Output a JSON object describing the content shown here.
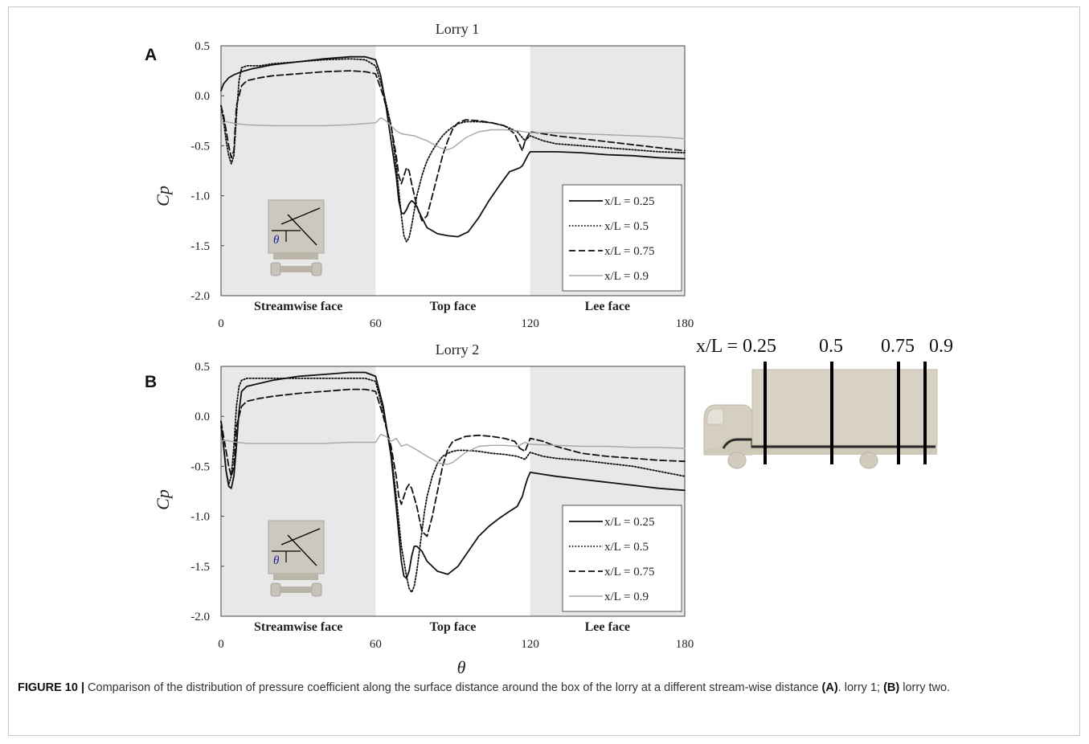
{
  "figure": {
    "caption_label": "FIGURE 10 |",
    "caption_text_1": " Comparison of the distribution of pressure coefficient along the surface distance around the box of the lorry at a different stream-wise distance ",
    "caption_bold_a": "(A)",
    "caption_text_2": ". lorry 1; ",
    "caption_bold_b": "(B)",
    "caption_text_3": " lorry two."
  },
  "schematic": {
    "label_prefix": "x/L = 0.25",
    "labels": [
      "0.5",
      "0.75",
      "0.9"
    ],
    "body_color": "#d8d2c4"
  },
  "chart_data": [
    {
      "type": "line",
      "panel_label": "A",
      "title": "Lorry 1",
      "xlabel": "",
      "ylabel": "Cp",
      "xlim": [
        0,
        180
      ],
      "ylim": [
        -2.0,
        0.5
      ],
      "xticks": [
        "0",
        "60",
        "120",
        "180"
      ],
      "yticks": [
        "0.5",
        "0.0",
        "-0.5",
        "-1.0",
        "-1.5",
        "-2.0"
      ],
      "regions": [
        {
          "label": "Streamwise face",
          "from": 0,
          "to": 60,
          "shaded": true
        },
        {
          "label": "Top face",
          "from": 60,
          "to": 120,
          "shaded": false
        },
        {
          "label": "Lee face",
          "from": 120,
          "to": 180,
          "shaded": true
        }
      ],
      "legend_position": "bottom-right",
      "inset_angle_label": "θ",
      "series": [
        {
          "name": "x/L = 0.25",
          "style": "solid",
          "color": "#111111",
          "x": [
            0,
            1,
            3,
            5,
            8,
            12,
            20,
            30,
            40,
            50,
            56,
            60,
            62,
            64,
            66,
            68,
            69,
            70,
            71,
            72,
            73,
            74,
            75,
            76,
            77,
            78,
            80,
            84,
            88,
            92,
            96,
            100,
            104,
            108,
            112,
            114,
            116,
            117,
            118,
            119,
            120,
            125,
            130,
            140,
            150,
            160,
            170,
            180
          ],
          "y": [
            0.05,
            0.12,
            0.18,
            0.21,
            0.24,
            0.27,
            0.31,
            0.34,
            0.37,
            0.39,
            0.39,
            0.36,
            0.2,
            -0.1,
            -0.45,
            -0.8,
            -1.05,
            -1.17,
            -1.18,
            -1.14,
            -1.08,
            -1.05,
            -1.07,
            -1.11,
            -1.17,
            -1.22,
            -1.32,
            -1.38,
            -1.4,
            -1.41,
            -1.36,
            -1.22,
            -1.05,
            -0.9,
            -0.76,
            -0.74,
            -0.72,
            -0.7,
            -0.65,
            -0.6,
            -0.56,
            -0.56,
            -0.56,
            -0.57,
            -0.59,
            -0.6,
            -0.62,
            -0.63
          ]
        },
        {
          "name": "x/L = 0.5",
          "style": "dotted",
          "color": "#111111",
          "x": [
            0,
            1,
            2,
            3,
            4,
            5,
            6,
            7,
            8,
            10,
            15,
            20,
            30,
            40,
            50,
            56,
            60,
            63,
            66,
            68,
            70,
            71,
            72,
            73,
            74,
            75,
            76,
            77,
            78,
            79,
            80,
            82,
            84,
            86,
            88,
            90,
            92,
            95,
            100,
            105,
            110,
            115,
            118,
            120,
            125,
            130,
            140,
            150,
            160,
            170,
            180
          ],
          "y": [
            -0.1,
            -0.25,
            -0.45,
            -0.6,
            -0.68,
            -0.6,
            -0.2,
            0.15,
            0.28,
            0.3,
            0.3,
            0.32,
            0.34,
            0.36,
            0.37,
            0.36,
            0.3,
            0.05,
            -0.3,
            -0.7,
            -1.2,
            -1.4,
            -1.46,
            -1.42,
            -1.3,
            -1.15,
            -1.0,
            -0.9,
            -0.8,
            -0.72,
            -0.65,
            -0.55,
            -0.47,
            -0.4,
            -0.35,
            -0.31,
            -0.28,
            -0.26,
            -0.26,
            -0.27,
            -0.3,
            -0.36,
            -0.45,
            -0.4,
            -0.45,
            -0.48,
            -0.5,
            -0.52,
            -0.54,
            -0.56,
            -0.57
          ]
        },
        {
          "name": "x/L = 0.75",
          "style": "dashed",
          "color": "#111111",
          "x": [
            0,
            1,
            2,
            3,
            4,
            5,
            6,
            8,
            10,
            15,
            20,
            30,
            40,
            50,
            56,
            60,
            63,
            66,
            68,
            69,
            70,
            71,
            72,
            73,
            74,
            76,
            78,
            80,
            82,
            84,
            86,
            88,
            90,
            92,
            95,
            100,
            105,
            110,
            114,
            117,
            118,
            120,
            125,
            130,
            140,
            150,
            160,
            170,
            180
          ],
          "y": [
            -0.1,
            -0.2,
            -0.35,
            -0.5,
            -0.62,
            -0.55,
            -0.1,
            0.1,
            0.15,
            0.18,
            0.2,
            0.22,
            0.24,
            0.25,
            0.24,
            0.22,
            0.0,
            -0.3,
            -0.6,
            -0.8,
            -0.88,
            -0.8,
            -0.72,
            -0.75,
            -0.88,
            -1.1,
            -1.25,
            -1.2,
            -1.0,
            -0.8,
            -0.6,
            -0.45,
            -0.33,
            -0.27,
            -0.24,
            -0.25,
            -0.27,
            -0.3,
            -0.38,
            -0.55,
            -0.45,
            -0.36,
            -0.38,
            -0.4,
            -0.43,
            -0.46,
            -0.49,
            -0.52,
            -0.55
          ]
        },
        {
          "name": "x/L = 0.9",
          "style": "solid-gray",
          "color": "#a6a6a6",
          "x": [
            0,
            2,
            4,
            6,
            10,
            20,
            30,
            40,
            50,
            60,
            62,
            64,
            66,
            68,
            70,
            75,
            80,
            85,
            88,
            90,
            92,
            95,
            100,
            105,
            110,
            115,
            120,
            130,
            140,
            150,
            160,
            170,
            180
          ],
          "y": [
            -0.28,
            -0.26,
            -0.27,
            -0.28,
            -0.29,
            -0.3,
            -0.3,
            -0.3,
            -0.29,
            -0.27,
            -0.22,
            -0.25,
            -0.3,
            -0.35,
            -0.38,
            -0.4,
            -0.45,
            -0.52,
            -0.54,
            -0.52,
            -0.48,
            -0.42,
            -0.36,
            -0.34,
            -0.34,
            -0.35,
            -0.37,
            -0.37,
            -0.38,
            -0.39,
            -0.4,
            -0.41,
            -0.43
          ]
        }
      ]
    },
    {
      "type": "line",
      "panel_label": "B",
      "title": "Lorry 2",
      "xlabel": "θ",
      "ylabel": "Cp",
      "xlim": [
        0,
        180
      ],
      "ylim": [
        -2.0,
        0.5
      ],
      "xticks": [
        "0",
        "60",
        "120",
        "180"
      ],
      "yticks": [
        "0.5",
        "0.0",
        "-0.5",
        "-1.0",
        "-1.5",
        "-2.0"
      ],
      "regions": [
        {
          "label": "Streamwise face",
          "from": 0,
          "to": 60,
          "shaded": true
        },
        {
          "label": "Top face",
          "from": 60,
          "to": 120,
          "shaded": false
        },
        {
          "label": "Lee face",
          "from": 120,
          "to": 180,
          "shaded": true
        }
      ],
      "legend_position": "bottom-right",
      "inset_angle_label": "θ",
      "series": [
        {
          "name": "x/L = 0.25",
          "style": "solid",
          "color": "#111111",
          "x": [
            0,
            1,
            2,
            3,
            4,
            5,
            6,
            7,
            8,
            10,
            15,
            20,
            30,
            40,
            50,
            56,
            60,
            63,
            66,
            68,
            70,
            71,
            72,
            73,
            74,
            75,
            76,
            78,
            80,
            84,
            88,
            92,
            96,
            100,
            104,
            108,
            112,
            115,
            117,
            118,
            119,
            120,
            125,
            130,
            140,
            150,
            160,
            170,
            180
          ],
          "y": [
            -0.1,
            -0.3,
            -0.55,
            -0.7,
            -0.72,
            -0.6,
            -0.3,
            0.05,
            0.25,
            0.3,
            0.33,
            0.36,
            0.4,
            0.42,
            0.44,
            0.44,
            0.4,
            0.1,
            -0.4,
            -0.9,
            -1.45,
            -1.6,
            -1.62,
            -1.55,
            -1.4,
            -1.3,
            -1.3,
            -1.35,
            -1.45,
            -1.55,
            -1.58,
            -1.5,
            -1.35,
            -1.2,
            -1.1,
            -1.02,
            -0.95,
            -0.9,
            -0.8,
            -0.7,
            -0.62,
            -0.56,
            -0.58,
            -0.6,
            -0.63,
            -0.66,
            -0.69,
            -0.72,
            -0.74
          ]
        },
        {
          "name": "x/L = 0.5",
          "style": "dotted",
          "color": "#111111",
          "x": [
            0,
            1,
            2,
            3,
            4,
            5,
            6,
            7,
            8,
            10,
            15,
            20,
            30,
            40,
            50,
            56,
            60,
            63,
            66,
            68,
            70,
            72,
            73,
            74,
            75,
            76,
            77,
            78,
            79,
            80,
            82,
            84,
            86,
            88,
            90,
            92,
            95,
            100,
            105,
            110,
            115,
            118,
            120,
            125,
            130,
            140,
            150,
            160,
            170,
            180
          ],
          "y": [
            -0.05,
            -0.3,
            -0.55,
            -0.68,
            -0.6,
            -0.3,
            0.1,
            0.3,
            0.36,
            0.38,
            0.38,
            0.38,
            0.38,
            0.38,
            0.38,
            0.38,
            0.35,
            0.05,
            -0.35,
            -0.8,
            -1.3,
            -1.6,
            -1.72,
            -1.76,
            -1.7,
            -1.55,
            -1.35,
            -1.15,
            -0.95,
            -0.8,
            -0.6,
            -0.47,
            -0.4,
            -0.37,
            -0.35,
            -0.34,
            -0.34,
            -0.35,
            -0.37,
            -0.38,
            -0.4,
            -0.43,
            -0.36,
            -0.4,
            -0.42,
            -0.44,
            -0.47,
            -0.5,
            -0.55,
            -0.6
          ]
        },
        {
          "name": "x/L = 0.75",
          "style": "dashed",
          "color": "#111111",
          "x": [
            0,
            1,
            2,
            3,
            4,
            5,
            6,
            8,
            10,
            15,
            20,
            30,
            40,
            50,
            56,
            60,
            63,
            66,
            68,
            69,
            70,
            71,
            72,
            73,
            74,
            76,
            78,
            80,
            82,
            84,
            86,
            88,
            90,
            95,
            100,
            105,
            110,
            114,
            116,
            118,
            120,
            125,
            130,
            140,
            150,
            160,
            170,
            180
          ],
          "y": [
            -0.05,
            -0.2,
            -0.35,
            -0.5,
            -0.6,
            -0.5,
            -0.1,
            0.1,
            0.15,
            0.18,
            0.2,
            0.23,
            0.25,
            0.27,
            0.27,
            0.25,
            0.0,
            -0.3,
            -0.6,
            -0.8,
            -0.88,
            -0.8,
            -0.72,
            -0.68,
            -0.72,
            -0.9,
            -1.15,
            -1.2,
            -1.0,
            -0.75,
            -0.5,
            -0.33,
            -0.25,
            -0.2,
            -0.19,
            -0.2,
            -0.22,
            -0.25,
            -0.32,
            -0.35,
            -0.22,
            -0.25,
            -0.3,
            -0.37,
            -0.4,
            -0.42,
            -0.44,
            -0.45
          ]
        },
        {
          "name": "x/L = 0.9",
          "style": "solid-gray",
          "color": "#a6a6a6",
          "x": [
            0,
            2,
            4,
            6,
            10,
            20,
            30,
            40,
            50,
            60,
            62,
            64,
            66,
            68,
            70,
            72,
            75,
            80,
            85,
            88,
            90,
            92,
            95,
            100,
            105,
            110,
            115,
            118,
            120,
            130,
            140,
            150,
            160,
            170,
            180
          ],
          "y": [
            -0.25,
            -0.24,
            -0.25,
            -0.26,
            -0.27,
            -0.27,
            -0.27,
            -0.27,
            -0.26,
            -0.26,
            -0.18,
            -0.2,
            -0.25,
            -0.22,
            -0.3,
            -0.28,
            -0.32,
            -0.4,
            -0.47,
            -0.48,
            -0.46,
            -0.42,
            -0.36,
            -0.3,
            -0.29,
            -0.29,
            -0.3,
            -0.26,
            -0.28,
            -0.29,
            -0.3,
            -0.3,
            -0.31,
            -0.31,
            -0.32
          ]
        }
      ]
    }
  ]
}
